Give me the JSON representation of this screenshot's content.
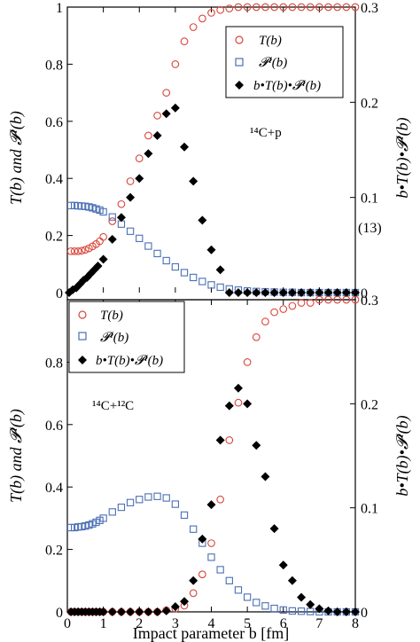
{
  "chart_data": [
    {
      "type": "scatter",
      "xlim": [
        0,
        8
      ],
      "ylim_left": [
        0,
        1
      ],
      "ylim_right": [
        0,
        0.3
      ],
      "ylabel_left": "T(b) and 𝓟ᴵ(b)",
      "ylabel_right": "b•T(b)•𝓟ᴵ(b)",
      "annotation": "¹⁴C+p",
      "side_note": "(13)",
      "legend_position": "top-right",
      "left_ticks": [
        "0",
        "0.2",
        "0.4",
        "0.6",
        "0.8",
        "1"
      ],
      "right_ticks": [
        "0",
        "0.1",
        "0.2",
        "0.3"
      ],
      "series": [
        {
          "name": "T(b)",
          "marker": "open-circle",
          "axis": "left",
          "x": [
            0.1,
            0.2,
            0.3,
            0.4,
            0.5,
            0.6,
            0.7,
            0.8,
            0.9,
            1.0,
            1.25,
            1.5,
            1.75,
            2.0,
            2.25,
            2.5,
            2.75,
            3.0,
            3.25,
            3.5,
            3.75,
            4.0,
            4.25,
            4.5,
            4.75,
            5.0,
            5.25,
            5.5,
            5.75,
            6.0,
            6.25,
            6.5,
            6.75,
            7.0,
            7.25,
            7.5,
            7.75,
            8.0
          ],
          "values": [
            0.145,
            0.145,
            0.145,
            0.147,
            0.15,
            0.155,
            0.162,
            0.17,
            0.18,
            0.195,
            0.25,
            0.31,
            0.39,
            0.47,
            0.55,
            0.62,
            0.7,
            0.8,
            0.88,
            0.93,
            0.96,
            0.98,
            0.99,
            0.995,
            1.0,
            1.0,
            1.0,
            1.0,
            1.0,
            1.0,
            1.0,
            1.0,
            1.0,
            1.0,
            1.0,
            1.0,
            1.0,
            1.0
          ]
        },
        {
          "name": "𝓟ᴵ(b)",
          "marker": "open-square",
          "axis": "left",
          "x": [
            0.1,
            0.2,
            0.3,
            0.4,
            0.5,
            0.6,
            0.7,
            0.8,
            0.9,
            1.0,
            1.25,
            1.5,
            1.75,
            2.0,
            2.25,
            2.5,
            2.75,
            3.0,
            3.25,
            3.5,
            3.75,
            4.0,
            4.25,
            4.5,
            4.75,
            5.0,
            5.25,
            5.5,
            5.75,
            6.0,
            6.25,
            6.5,
            6.75,
            7.0,
            7.25,
            7.5,
            7.75,
            8.0
          ],
          "values": [
            0.305,
            0.305,
            0.304,
            0.303,
            0.302,
            0.3,
            0.297,
            0.293,
            0.289,
            0.283,
            0.265,
            0.24,
            0.215,
            0.19,
            0.163,
            0.137,
            0.112,
            0.09,
            0.07,
            0.053,
            0.039,
            0.027,
            0.019,
            0.013,
            0.009,
            0.006,
            0.004,
            0.003,
            0.002,
            0.001,
            0.001,
            0.0,
            0.0,
            0.0,
            0.0,
            0.0,
            0.0,
            0.0
          ]
        },
        {
          "name": "b•T(b)•𝓟ᴵ(b)",
          "marker": "filled-diamond",
          "axis": "right",
          "x": [
            0.05,
            0.15,
            0.25,
            0.35,
            0.45,
            0.55,
            0.65,
            0.75,
            0.85,
            1.0,
            1.25,
            1.5,
            1.75,
            2.0,
            2.25,
            2.5,
            2.75,
            3.0,
            3.25,
            3.5,
            3.75,
            4.0,
            4.25,
            4.5,
            4.75,
            5.0,
            5.25,
            5.5,
            5.75,
            6.0,
            6.25,
            6.5,
            6.75,
            7.0,
            7.25,
            7.5,
            7.75,
            8.0
          ],
          "values": [
            0.0,
            0.003,
            0.005,
            0.009,
            0.013,
            0.016,
            0.02,
            0.024,
            0.028,
            0.035,
            0.056,
            0.079,
            0.1,
            0.12,
            0.146,
            0.165,
            0.188,
            0.194,
            0.153,
            0.117,
            0.076,
            0.045,
            0.024,
            0.0,
            0.0,
            0.0,
            0.0,
            0.0,
            0.0,
            0.0,
            0.0,
            0.0,
            0.0,
            0.0,
            0.0,
            0.0,
            0.0,
            0.0
          ]
        }
      ]
    },
    {
      "type": "scatter",
      "xlim": [
        0,
        8
      ],
      "ylim_left": [
        0,
        1
      ],
      "ylim_right": [
        0,
        0.3
      ],
      "xlabel": "Impact parameter b [fm]",
      "ylabel_left": "T(b) and 𝓟ᴵ(b)",
      "ylabel_right": "b•T(b)•𝓟ᴵ(b)",
      "annotation": "¹⁴C+¹²C",
      "legend_position": "top-left",
      "x_ticks": [
        "0",
        "1",
        "2",
        "3",
        "4",
        "5",
        "6",
        "7",
        "8"
      ],
      "left_ticks": [
        "0",
        "0.2",
        "0.4",
        "0.6",
        "0.8"
      ],
      "right_ticks": [
        "0",
        "0.1",
        "0.2",
        "0.3"
      ],
      "series": [
        {
          "name": "T(b)",
          "marker": "open-circle",
          "axis": "left",
          "x": [
            0.1,
            0.2,
            0.3,
            0.4,
            0.5,
            0.6,
            0.7,
            0.8,
            0.9,
            1.0,
            1.25,
            1.5,
            1.75,
            2.0,
            2.25,
            2.5,
            2.75,
            3.0,
            3.25,
            3.5,
            3.75,
            4.0,
            4.25,
            4.5,
            4.75,
            5.0,
            5.25,
            5.5,
            5.75,
            6.0,
            6.25,
            6.5,
            6.75,
            7.0,
            7.25,
            7.5,
            7.75,
            8.0
          ],
          "values": [
            0.0,
            0.0,
            0.0,
            0.0,
            0.0,
            0.0,
            0.0,
            0.0,
            0.0,
            0.0,
            0.0,
            0.0,
            0.0,
            0.0,
            0.0,
            0.0,
            0.005,
            0.01,
            0.02,
            0.06,
            0.12,
            0.22,
            0.36,
            0.55,
            0.67,
            0.8,
            0.88,
            0.93,
            0.96,
            0.97,
            0.98,
            0.99,
            0.99,
            1.0,
            1.0,
            1.0,
            1.0,
            1.0
          ]
        },
        {
          "name": "𝓟ᴵ(b)",
          "marker": "open-square",
          "axis": "left",
          "x": [
            0.1,
            0.2,
            0.3,
            0.4,
            0.5,
            0.6,
            0.7,
            0.8,
            0.9,
            1.0,
            1.25,
            1.5,
            1.75,
            2.0,
            2.25,
            2.5,
            2.75,
            3.0,
            3.25,
            3.5,
            3.75,
            4.0,
            4.25,
            4.5,
            4.75,
            5.0,
            5.25,
            5.5,
            5.75,
            6.0,
            6.25,
            6.5,
            6.75,
            7.0,
            7.25,
            7.5,
            7.75,
            8.0
          ],
          "values": [
            0.27,
            0.27,
            0.272,
            0.273,
            0.275,
            0.278,
            0.282,
            0.287,
            0.293,
            0.3,
            0.32,
            0.335,
            0.35,
            0.36,
            0.368,
            0.37,
            0.365,
            0.345,
            0.31,
            0.265,
            0.22,
            0.175,
            0.135,
            0.1,
            0.07,
            0.047,
            0.03,
            0.019,
            0.011,
            0.006,
            0.003,
            0.002,
            0.001,
            0.0,
            0.0,
            0.0,
            0.0,
            0.0
          ]
        },
        {
          "name": "b•T(b)•𝓟ᴵ(b)",
          "marker": "filled-diamond",
          "axis": "right",
          "x": [
            0.1,
            0.2,
            0.3,
            0.4,
            0.5,
            0.6,
            0.7,
            0.8,
            0.9,
            1.0,
            1.25,
            1.5,
            1.75,
            2.0,
            2.25,
            2.5,
            2.75,
            3.0,
            3.25,
            3.5,
            3.75,
            4.0,
            4.25,
            4.5,
            4.75,
            5.0,
            5.25,
            5.5,
            5.75,
            6.0,
            6.25,
            6.5,
            6.75,
            7.0,
            7.25,
            7.5,
            7.75,
            8.0
          ],
          "values": [
            0.0,
            0.0,
            0.0,
            0.0,
            0.0,
            0.0,
            0.0,
            0.0,
            0.0,
            0.0,
            0.0,
            0.0,
            0.0,
            0.0,
            0.0,
            0.0,
            0.001,
            0.005,
            0.01,
            0.03,
            0.07,
            0.103,
            0.165,
            0.198,
            0.215,
            0.2,
            0.16,
            0.13,
            0.08,
            0.045,
            0.03,
            0.014,
            0.007,
            0.003,
            0.001,
            0.0,
            0.0,
            0.0
          ]
        }
      ]
    }
  ]
}
